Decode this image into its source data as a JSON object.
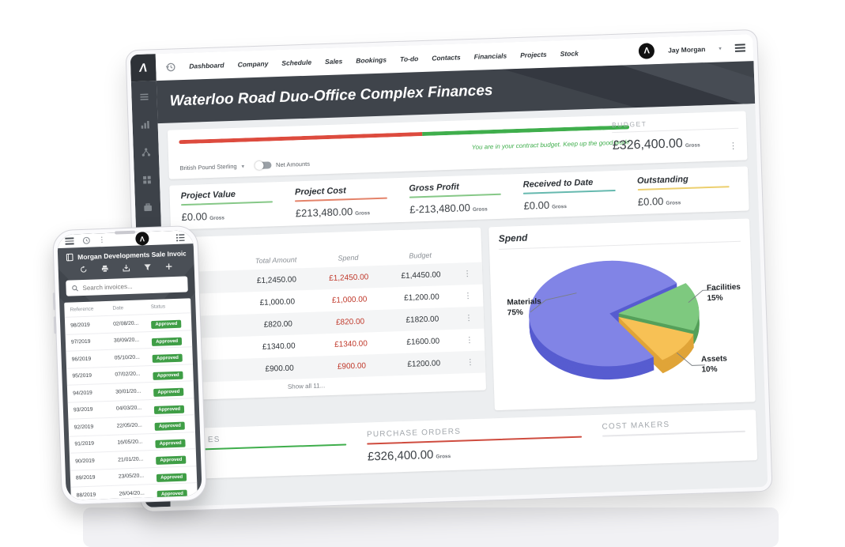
{
  "desktop": {
    "topnav": {
      "items": [
        "Dashboard",
        "Company",
        "Schedule",
        "Sales",
        "Bookings",
        "To-do",
        "Contacts",
        "Financials",
        "Projects",
        "Stock"
      ],
      "user_name": "Jay Morgan",
      "logo_letter": "Λ"
    },
    "banner": {
      "title": "Waterloo Road Duo-Office Complex Finances"
    },
    "budget": {
      "label": "BUDGET",
      "amount": "£326,400.00",
      "unit": "Gross",
      "message": "You are in your contract budget. Keep up the good work!",
      "currency_selector": "British Pound Sterling",
      "toggle_label": "Net Amounts",
      "progress_red_pct": 54,
      "bar_red": "#dd4b3e",
      "bar_green": "#3fae4c"
    },
    "kpis": [
      {
        "label": "Project Value",
        "value": "£0.00",
        "unit": "Gross",
        "color": "#86c887"
      },
      {
        "label": "Project Cost",
        "value": "£213,480.00",
        "unit": "Gross",
        "color": "#e4836a"
      },
      {
        "label": "Gross Profit",
        "value": "£-213,480.00",
        "unit": "Gross",
        "color": "#86c887"
      },
      {
        "label": "Received to Date",
        "value": "£0.00",
        "unit": "Gross",
        "color": "#66b9af"
      },
      {
        "label": "Outstanding",
        "value": "£0.00",
        "unit": "Gross",
        "color": "#eccf6e"
      }
    ],
    "cost_table": {
      "visible_title_fragment": "s",
      "columns": [
        "Total Amount",
        "Spend",
        "Budget"
      ],
      "rows": [
        {
          "total": "£1,2450.00",
          "spend": "£1,2450.00",
          "budget": "£1,4450.00"
        },
        {
          "total": "£1,000.00",
          "spend": "£1,000.00",
          "budget": "£1,200.00"
        },
        {
          "total": "£820.00",
          "spend": "£820.00",
          "budget": "£1820.00"
        },
        {
          "total": "£1340.00",
          "spend": "£1340.00",
          "budget": "£1600.00"
        },
        {
          "total": "£900.00",
          "spend": "£900.00",
          "budget": "£1200.00"
        }
      ],
      "footer": "Show all 11..."
    },
    "spend_chart": {
      "type": "pie",
      "title": "Spend",
      "start_angle": -32,
      "slices": [
        {
          "label": "Facilities",
          "pct": "15%",
          "value": 15,
          "top": "#7ec97f",
          "side": "#55a05a",
          "explode": 8
        },
        {
          "label": "Assets",
          "pct": "10%",
          "value": 10,
          "top": "#f7c155",
          "side": "#e0a438",
          "explode": 10
        },
        {
          "label": "Materials",
          "pct": "75%",
          "value": 75,
          "top": "#8184e6",
          "side": "#575cd0",
          "explode": 4
        }
      ]
    },
    "bottom_sections": {
      "invoices_visible_fragment": "ES",
      "purchase_orders_label": "PURCHASE ORDERS",
      "purchase_orders_value": "£326,400.00",
      "purchase_orders_unit": "Gross",
      "cost_makers_label": "COST MAKERS"
    }
  },
  "phone": {
    "title": "Morgan Developments Sale Invoic...",
    "search_placeholder": "Search invoices...",
    "table": {
      "columns": [
        "Reference",
        "Date",
        "Status"
      ],
      "rows": [
        {
          "ref": "98/2019",
          "date": "02/08/20...",
          "status": "Approved"
        },
        {
          "ref": "97/2019",
          "date": "30/09/20...",
          "status": "Approved"
        },
        {
          "ref": "96/2019",
          "date": "05/10/20...",
          "status": "Approved"
        },
        {
          "ref": "95/2019",
          "date": "07/02/20...",
          "status": "Approved"
        },
        {
          "ref": "94/2019",
          "date": "30/01/20...",
          "status": "Approved"
        },
        {
          "ref": "93/2019",
          "date": "04/03/20...",
          "status": "Approved"
        },
        {
          "ref": "92/2019",
          "date": "22/05/20...",
          "status": "Approved"
        },
        {
          "ref": "91/2019",
          "date": "16/05/20...",
          "status": "Approved"
        },
        {
          "ref": "90/2019",
          "date": "21/01/20...",
          "status": "Approved"
        },
        {
          "ref": "89/2019",
          "date": "23/05/20...",
          "status": "Approved"
        },
        {
          "ref": "88/2019",
          "date": "26/04/20...",
          "status": "Approved"
        }
      ]
    }
  }
}
